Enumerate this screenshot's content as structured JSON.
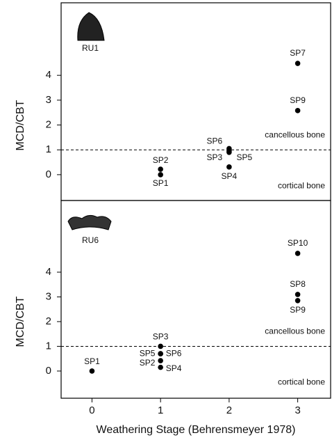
{
  "chart_data": [
    {
      "type": "scatter",
      "title": "RU1",
      "ylabel": "MCD/CBT",
      "x": [
        1,
        1,
        2,
        2,
        2,
        2,
        3,
        3
      ],
      "values": [
        0,
        0.22,
        1.05,
        0.95,
        0.9,
        0.31,
        4.48,
        2.58
      ],
      "point_labels": [
        "SP1",
        "SP2",
        "SP6",
        "SP3",
        "SP5",
        "SP4",
        "SP7",
        "SP9"
      ],
      "color": "#000000",
      "xlim": [
        -0.45,
        3.48
      ],
      "ylim": [
        -1.04,
        6.92
      ],
      "yticks": [
        0,
        1,
        2,
        3,
        4
      ],
      "reference_line": 1,
      "annotations": [
        "cancellous bone",
        "cortical bone"
      ]
    },
    {
      "type": "scatter",
      "title": "RU6",
      "ylabel": "MCD/CBT",
      "xlabel": "Weathering Stage (Behrensmeyer 1978)",
      "x": [
        0,
        1,
        1,
        1,
        1,
        1,
        3,
        3,
        3
      ],
      "values": [
        0,
        1.0,
        0.7,
        0.7,
        0.42,
        0.15,
        4.76,
        3.1,
        2.85
      ],
      "point_labels": [
        "SP1",
        "SP3",
        "SP5",
        "SP6",
        "SP2",
        "SP4",
        "SP10",
        "SP8",
        "SP9"
      ],
      "color": "#000000",
      "xlim": [
        -0.45,
        3.48
      ],
      "ylim": [
        -1.1,
        6.9
      ],
      "xticks": [
        0,
        1,
        2,
        3
      ],
      "yticks": [
        0,
        1,
        2,
        3,
        4
      ],
      "reference_line": 1,
      "annotations": [
        "cancellous bone",
        "cortical bone"
      ]
    }
  ]
}
